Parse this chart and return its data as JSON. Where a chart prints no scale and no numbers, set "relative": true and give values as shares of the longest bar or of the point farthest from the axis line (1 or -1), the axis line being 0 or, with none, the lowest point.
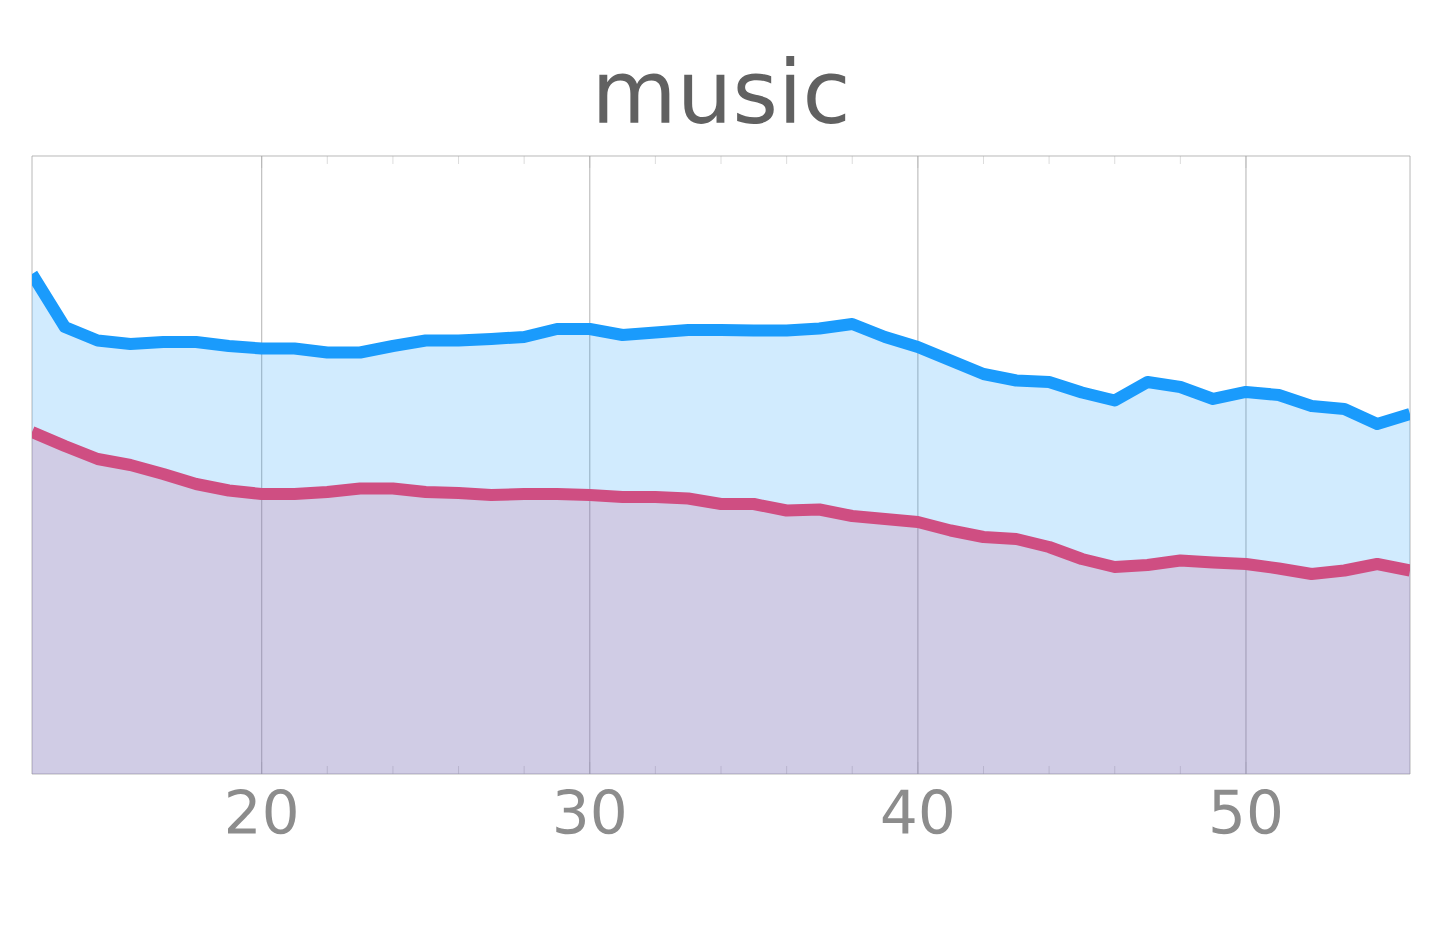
{
  "chart_data": {
    "type": "area",
    "title": "music",
    "relative": true,
    "grid": "x",
    "x": [
      13,
      14,
      15,
      16,
      17,
      18,
      19,
      20,
      21,
      22,
      23,
      24,
      25,
      26,
      27,
      28,
      29,
      30,
      31,
      32,
      33,
      34,
      35,
      36,
      37,
      38,
      39,
      40,
      41,
      42,
      43,
      44,
      45,
      46,
      47,
      48,
      49,
      50,
      51,
      52,
      53,
      54,
      55
    ],
    "xlim": [
      13,
      55
    ],
    "xticks": [
      20,
      30,
      40,
      50
    ],
    "series": [
      {
        "color": "#1a9bfc",
        "values": [
          1.0,
          0.894,
          0.867,
          0.86,
          0.864,
          0.864,
          0.856,
          0.851,
          0.851,
          0.843,
          0.843,
          0.856,
          0.867,
          0.867,
          0.87,
          0.874,
          0.89,
          0.89,
          0.878,
          0.883,
          0.888,
          0.888,
          0.887,
          0.887,
          0.891,
          0.9,
          0.874,
          0.854,
          0.827,
          0.8,
          0.787,
          0.784,
          0.763,
          0.747,
          0.784,
          0.774,
          0.75,
          0.764,
          0.758,
          0.736,
          0.73,
          0.7,
          0.72
        ]
      },
      {
        "color": "#cf4e82",
        "values": [
          0.684,
          0.656,
          0.63,
          0.618,
          0.6,
          0.58,
          0.567,
          0.56,
          0.56,
          0.564,
          0.571,
          0.571,
          0.564,
          0.562,
          0.558,
          0.56,
          0.56,
          0.558,
          0.554,
          0.554,
          0.551,
          0.54,
          0.54,
          0.527,
          0.529,
          0.516,
          0.51,
          0.504,
          0.487,
          0.474,
          0.47,
          0.454,
          0.43,
          0.414,
          0.418,
          0.427,
          0.423,
          0.42,
          0.411,
          0.4,
          0.407,
          0.42,
          0.407
        ]
      }
    ]
  }
}
